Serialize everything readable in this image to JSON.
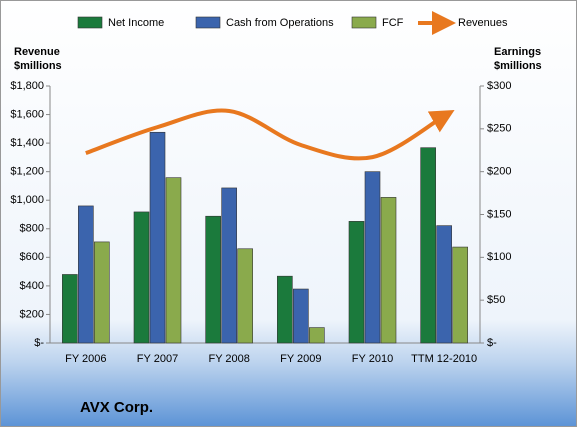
{
  "chart_data": {
    "type": "bar-line",
    "caption": "AVX Corp.",
    "ylabel": [
      "Revenue",
      "$millions"
    ],
    "y2label": [
      "Earnings",
      "$millions"
    ],
    "categories": [
      "FY 2006",
      "FY 2007",
      "FY 2008",
      "FY 2009",
      "FY 2010",
      "TTM 12-2010"
    ],
    "series": [
      {
        "name": "Net Income",
        "type": "bar",
        "axis": "y2",
        "color": "#1b7a3c",
        "values": [
          80,
          153,
          148,
          78,
          142,
          228
        ]
      },
      {
        "name": "Cash from Operations",
        "type": "bar",
        "axis": "y2",
        "color": "#3b64ad",
        "values": [
          160,
          246,
          181,
          63,
          200,
          137
        ]
      },
      {
        "name": "FCF",
        "type": "bar",
        "axis": "y2",
        "color": "#8aaa4c",
        "values": [
          118,
          193,
          110,
          18,
          170,
          112
        ]
      },
      {
        "name": "Revenues",
        "type": "line",
        "color": "#e8781f",
        "values": [
          1330,
          1512,
          1625,
          1387,
          1302,
          1590
        ]
      }
    ],
    "ylim": [
      0,
      1800
    ],
    "yticks": [
      {
        "value": 0,
        "label": "$-"
      },
      {
        "value": 200,
        "label": "$200"
      },
      {
        "value": 400,
        "label": "$400"
      },
      {
        "value": 600,
        "label": "$600"
      },
      {
        "value": 800,
        "label": "$800"
      },
      {
        "value": 1000,
        "label": "$1,000"
      },
      {
        "value": 1200,
        "label": "$1,200"
      },
      {
        "value": 1400,
        "label": "$1,400"
      },
      {
        "value": 1600,
        "label": "$1,600"
      },
      {
        "value": 1800,
        "label": "$1,800"
      }
    ],
    "y2lim": [
      0,
      300
    ],
    "y2ticks": [
      {
        "value": 0,
        "label": "$-"
      },
      {
        "value": 50,
        "label": "$50"
      },
      {
        "value": 100,
        "label": "$100"
      },
      {
        "value": 150,
        "label": "$150"
      },
      {
        "value": 200,
        "label": "$200"
      },
      {
        "value": 250,
        "label": "$250"
      },
      {
        "value": 300,
        "label": "$300"
      }
    ],
    "grid": false
  }
}
